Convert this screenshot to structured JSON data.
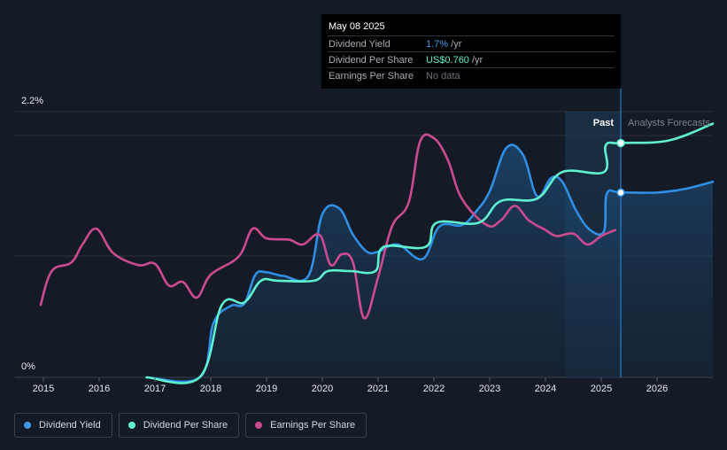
{
  "chart_data": {
    "type": "line",
    "y_axis": {
      "ticks": [
        "2.2%",
        "0%"
      ]
    },
    "x_axis": {
      "ticks": [
        "2015",
        "2016",
        "2017",
        "2018",
        "2019",
        "2020",
        "2021",
        "2022",
        "2023",
        "2024",
        "2025",
        "2026"
      ]
    },
    "divider_labels": {
      "past": "Past",
      "forecast": "Analysts Forecasts"
    },
    "series": [
      {
        "name": "Dividend Yield",
        "color": "#2f8fe4",
        "fill": true,
        "points": [
          [
            2016.85,
            0.0
          ],
          [
            2017.8,
            0.0
          ],
          [
            2018.05,
            0.45
          ],
          [
            2018.35,
            0.59
          ],
          [
            2018.6,
            0.61
          ],
          [
            2018.8,
            0.85
          ],
          [
            2019.0,
            0.87
          ],
          [
            2019.3,
            0.84
          ],
          [
            2019.75,
            0.84
          ],
          [
            2020.0,
            1.35
          ],
          [
            2020.3,
            1.4
          ],
          [
            2020.55,
            1.18
          ],
          [
            2020.8,
            1.04
          ],
          [
            2021.0,
            1.04
          ],
          [
            2021.35,
            1.1
          ],
          [
            2021.8,
            0.98
          ],
          [
            2022.1,
            1.25
          ],
          [
            2022.5,
            1.26
          ],
          [
            2022.75,
            1.37
          ],
          [
            2023.0,
            1.54
          ],
          [
            2023.3,
            1.9
          ],
          [
            2023.6,
            1.84
          ],
          [
            2023.85,
            1.5
          ],
          [
            2024.1,
            1.65
          ],
          [
            2024.3,
            1.62
          ],
          [
            2024.55,
            1.38
          ],
          [
            2024.8,
            1.22
          ],
          [
            2025.05,
            1.21
          ],
          [
            2025.1,
            1.52
          ],
          [
            2025.35,
            1.53
          ],
          [
            2026.0,
            1.53
          ],
          [
            2026.5,
            1.56
          ],
          [
            2027.0,
            1.62
          ]
        ]
      },
      {
        "name": "Dividend Per Share",
        "color": "#5ff2d0",
        "fill": false,
        "points": [
          [
            2016.85,
            0.0
          ],
          [
            2017.8,
            0.0
          ],
          [
            2018.2,
            0.6
          ],
          [
            2018.6,
            0.62
          ],
          [
            2018.9,
            0.8
          ],
          [
            2019.2,
            0.8
          ],
          [
            2019.85,
            0.8
          ],
          [
            2020.1,
            0.88
          ],
          [
            2020.5,
            0.88
          ],
          [
            2020.95,
            0.88
          ],
          [
            2021.1,
            1.08
          ],
          [
            2021.85,
            1.08
          ],
          [
            2022.05,
            1.28
          ],
          [
            2022.8,
            1.28
          ],
          [
            2023.2,
            1.46
          ],
          [
            2023.85,
            1.48
          ],
          [
            2024.3,
            1.7
          ],
          [
            2025.05,
            1.7
          ],
          [
            2025.08,
            1.92
          ],
          [
            2025.35,
            1.94
          ],
          [
            2026.2,
            1.96
          ],
          [
            2027.0,
            2.1
          ]
        ]
      },
      {
        "name": "Earnings Per Share",
        "color": "#cc4a8f",
        "fill": false,
        "points": [
          [
            2014.95,
            0.6
          ],
          [
            2015.15,
            0.88
          ],
          [
            2015.5,
            0.95
          ],
          [
            2015.7,
            1.1
          ],
          [
            2015.95,
            1.23
          ],
          [
            2016.25,
            1.03
          ],
          [
            2016.7,
            0.93
          ],
          [
            2017.0,
            0.94
          ],
          [
            2017.25,
            0.76
          ],
          [
            2017.5,
            0.79
          ],
          [
            2017.75,
            0.66
          ],
          [
            2018.0,
            0.85
          ],
          [
            2018.5,
            1.0
          ],
          [
            2018.75,
            1.23
          ],
          [
            2019.0,
            1.15
          ],
          [
            2019.4,
            1.14
          ],
          [
            2019.65,
            1.1
          ],
          [
            2019.95,
            1.18
          ],
          [
            2020.15,
            0.93
          ],
          [
            2020.35,
            1.02
          ],
          [
            2020.55,
            0.95
          ],
          [
            2020.75,
            0.49
          ],
          [
            2021.0,
            0.83
          ],
          [
            2021.25,
            1.25
          ],
          [
            2021.55,
            1.45
          ],
          [
            2021.75,
            1.95
          ],
          [
            2022.0,
            1.98
          ],
          [
            2022.25,
            1.8
          ],
          [
            2022.5,
            1.48
          ],
          [
            2022.95,
            1.26
          ],
          [
            2023.2,
            1.3
          ],
          [
            2023.45,
            1.42
          ],
          [
            2023.7,
            1.3
          ],
          [
            2024.0,
            1.22
          ],
          [
            2024.2,
            1.17
          ],
          [
            2024.5,
            1.19
          ],
          [
            2024.75,
            1.1
          ],
          [
            2025.0,
            1.17
          ],
          [
            2025.25,
            1.22
          ]
        ]
      }
    ]
  },
  "tooltip": {
    "date": "May 08 2025",
    "rows": [
      {
        "label": "Dividend Yield",
        "value": "1.7%",
        "unit": " /yr"
      },
      {
        "label": "Dividend Per Share",
        "value": "US$0.760",
        "unit": " /yr"
      },
      {
        "label": "Earnings Per Share",
        "value": "No data",
        "unit": ""
      }
    ]
  },
  "legend": [
    {
      "label": "Dividend Yield",
      "color": "#3d9be9"
    },
    {
      "label": "Dividend Per Share",
      "color": "#5ff2d0"
    },
    {
      "label": "Earnings Per Share",
      "color": "#cc4a8f"
    }
  ]
}
